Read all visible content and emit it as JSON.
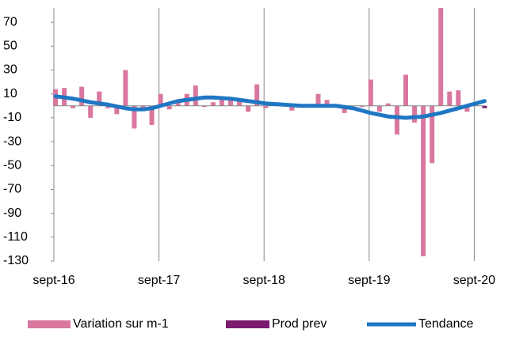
{
  "chart_data": {
    "type": "bar",
    "categories": [
      "sept-16",
      null,
      null,
      null,
      null,
      null,
      null,
      null,
      null,
      null,
      null,
      null,
      "sept-17",
      null,
      null,
      null,
      null,
      null,
      null,
      null,
      null,
      null,
      null,
      null,
      "sept-18",
      null,
      null,
      null,
      null,
      null,
      null,
      null,
      null,
      null,
      null,
      null,
      "sept-19",
      null,
      null,
      null,
      null,
      null,
      null,
      null,
      null,
      null,
      null,
      null,
      "sept-20",
      null
    ],
    "series": [
      {
        "name": "Variation sur m-1",
        "type": "bar",
        "color": "#d9779f",
        "values": [
          14,
          15,
          -2,
          16,
          -10,
          12,
          -2,
          -7,
          30,
          -19,
          -3,
          -16,
          10,
          -3,
          5,
          10,
          17,
          -1,
          3,
          6,
          6,
          4,
          -5,
          18,
          -2,
          0,
          1,
          -4,
          0,
          1,
          10,
          5,
          0,
          -6,
          0,
          -1,
          22,
          -5,
          2,
          -24,
          26,
          -14,
          -126,
          -48,
          82,
          12,
          13,
          -5,
          3,
          null
        ]
      },
      {
        "name": "Prod prev",
        "type": "bar",
        "color": "#7b1a6e",
        "values": [
          null,
          null,
          null,
          null,
          null,
          null,
          null,
          null,
          null,
          null,
          null,
          null,
          null,
          null,
          null,
          null,
          null,
          null,
          null,
          null,
          null,
          null,
          null,
          null,
          null,
          null,
          null,
          null,
          null,
          null,
          null,
          null,
          null,
          null,
          null,
          null,
          null,
          null,
          null,
          null,
          null,
          null,
          null,
          null,
          null,
          null,
          null,
          null,
          null,
          -2
        ]
      },
      {
        "name": "Tendance",
        "type": "line",
        "color": "#1f77c4",
        "values": [
          8,
          7,
          6,
          4.5,
          3,
          2,
          1,
          -0.5,
          -2,
          -3,
          -3,
          -2,
          0,
          2,
          4,
          5,
          6,
          7,
          7,
          6.5,
          6,
          5,
          4,
          3,
          2,
          1.5,
          1,
          0.5,
          0,
          0,
          0,
          0,
          0,
          -1,
          -2,
          -4,
          -6,
          -7.5,
          -9,
          -9.5,
          -10,
          -9.5,
          -9,
          -7.5,
          -6,
          -4,
          -2,
          0,
          2,
          4
        ]
      }
    ],
    "ylim": [
      -130,
      82
    ],
    "yticks": [
      70,
      50,
      30,
      10,
      -10,
      -30,
      -50,
      -70,
      -90,
      -110,
      -130
    ],
    "legend": "bottom"
  }
}
